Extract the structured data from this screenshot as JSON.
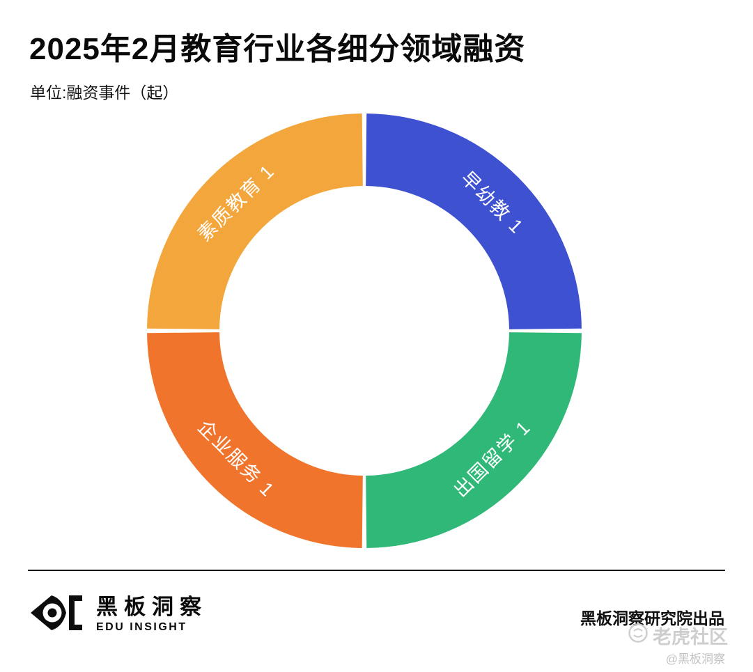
{
  "header": {
    "title": "2025年2月教育行业各细分领域融资",
    "unit_label": "单位:融资事件（起）"
  },
  "chart_data": {
    "type": "pie",
    "subtype": "donut",
    "title": "2025年2月教育行业各细分领域融资",
    "unit": "融资事件（起）",
    "legend_position": "none",
    "labels_on_slices": true,
    "segments": [
      {
        "label": "早幼教",
        "value": 1,
        "color": "#3E51D1"
      },
      {
        "label": "出国留学",
        "value": 1,
        "color": "#2FB877"
      },
      {
        "label": "企业服务",
        "value": 1,
        "color": "#F0742C"
      },
      {
        "label": "素质教育",
        "value": 1,
        "color": "#F3A63B"
      }
    ],
    "total": 4
  },
  "footer": {
    "brand_name": "黑板洞察",
    "brand_sub": "EDU INSIGHT",
    "credit": "黑板洞察研究院出品",
    "watermark_tiger": "老虎社区",
    "watermark_brand": "@黑板洞察"
  }
}
